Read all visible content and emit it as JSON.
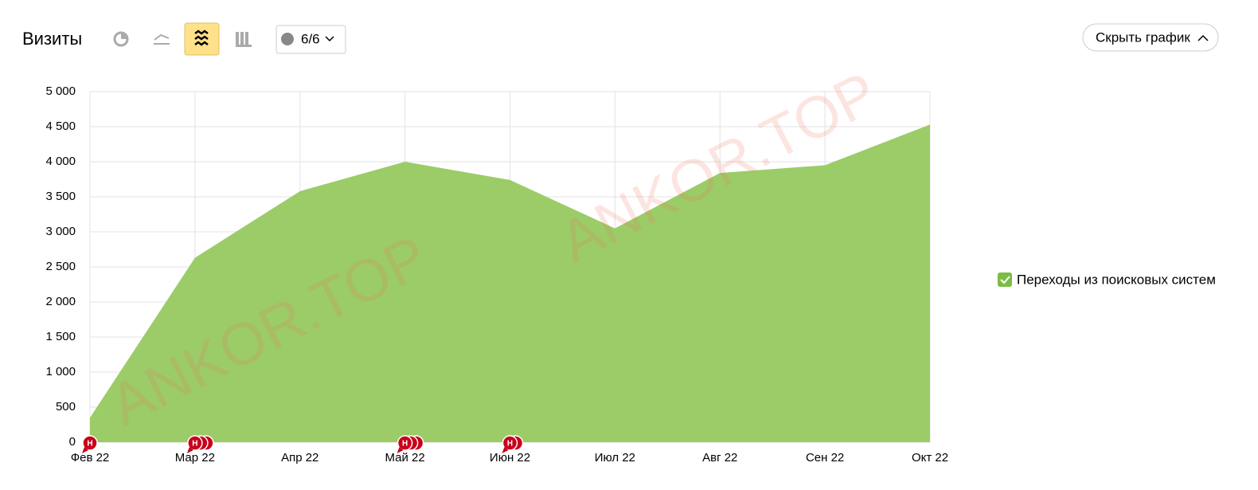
{
  "toolbar": {
    "title": "Визиты",
    "notes_counter": "6/6",
    "hide_button": "Скрыть график"
  },
  "watermark": "ANKOR.TOP",
  "chart_data": {
    "type": "area",
    "categories": [
      "Фев 22",
      "Мар 22",
      "Апр 22",
      "Май 22",
      "Июн 22",
      "Июл 22",
      "Авг 22",
      "Сен 22",
      "Окт 22"
    ],
    "series": [
      {
        "name": "Переходы из поисковых систем",
        "color": "#9bcc68",
        "values": [
          350,
          2630,
          3580,
          4000,
          3740,
          3050,
          3840,
          3950,
          4530
        ]
      }
    ],
    "ylim": [
      0,
      5000
    ],
    "yticks": [
      0,
      500,
      {
        "value": 1000,
        "label": "1 000"
      },
      {
        "value": 1500,
        "label": "1 500"
      },
      {
        "value": 2000,
        "label": "2 000"
      },
      {
        "value": 2500,
        "label": "2 500"
      },
      {
        "value": 3000,
        "label": "3 000"
      },
      {
        "value": 3500,
        "label": "3 500"
      },
      {
        "value": 4000,
        "label": "4 000"
      },
      {
        "value": 4500,
        "label": "4 500"
      },
      {
        "value": 5000,
        "label": "5 000"
      }
    ],
    "grid": true,
    "legend": "right",
    "annotations": [
      {
        "category": "Фев 22",
        "label": "Н",
        "count": 1
      },
      {
        "category": "Мар 22",
        "label": "Н",
        "count": 3
      },
      {
        "category": "Май 22",
        "label": "Н",
        "count": 3
      },
      {
        "category": "Июн 22",
        "label": "Н",
        "count": 2
      }
    ]
  }
}
